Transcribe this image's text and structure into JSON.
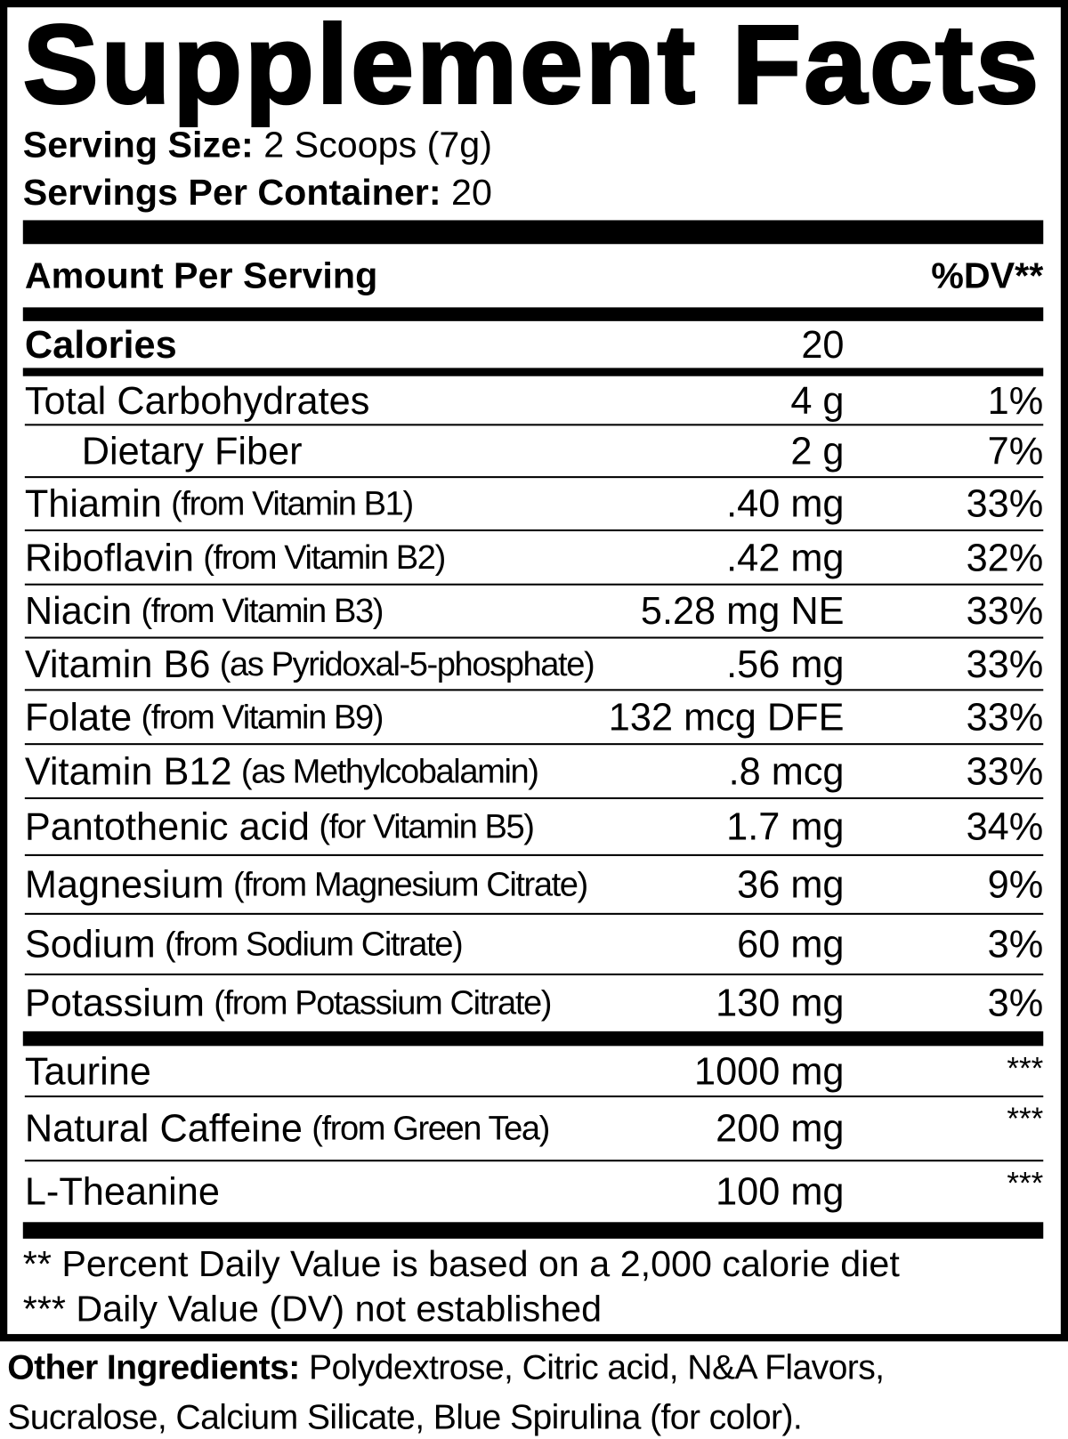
{
  "title": "Supplement Facts",
  "serving_size": {
    "label": "Serving Size:",
    "value": "2 Scoops (7g)"
  },
  "servings_per_container": {
    "label": "Servings Per Container:",
    "value": "20"
  },
  "header": {
    "amount_label": "Amount Per Serving",
    "dv_label": "%DV**"
  },
  "calories": {
    "label": "Calories",
    "value": "20"
  },
  "nutrients": [
    {
      "name": "Total Carbohydrates",
      "note": "",
      "amount": "4 g",
      "dv": "1%"
    },
    {
      "name": "Dietary Fiber",
      "note": "",
      "amount": "2 g",
      "dv": "7%",
      "indent": true
    },
    {
      "name": "Thiamin",
      "note": "(from Vitamin B1)",
      "amount": ".40 mg",
      "dv": "33%"
    },
    {
      "name": "Riboflavin",
      "note": "(from Vitamin B2)",
      "amount": ".42 mg",
      "dv": "32%"
    },
    {
      "name": "Niacin",
      "note": "(from Vitamin B3)",
      "amount": "5.28 mg NE",
      "dv": "33%"
    },
    {
      "name": "Vitamin B6",
      "note": "(as Pyridoxal-5-phosphate)",
      "amount": ".56 mg",
      "dv": "33%"
    },
    {
      "name": "Folate",
      "note": "(from Vitamin B9)",
      "amount": "132 mcg DFE",
      "dv": "33%"
    },
    {
      "name": "Vitamin B12",
      "note": "(as Methylcobalamin)",
      "amount": ".8 mcg",
      "dv": "33%"
    },
    {
      "name": "Pantothenic acid",
      "note": "(for Vitamin B5)",
      "amount": "1.7 mg",
      "dv": "34%"
    },
    {
      "name": "Magnesium",
      "note": "(from Magnesium Citrate)",
      "amount": "36 mg",
      "dv": "9%"
    },
    {
      "name": "Sodium",
      "note": "(from Sodium Citrate)",
      "amount": "60 mg",
      "dv": "3%"
    },
    {
      "name": "Potassium",
      "note": "(from Potassium Citrate)",
      "amount": "130 mg",
      "dv": "3%"
    }
  ],
  "other_actives": [
    {
      "name": "Taurine",
      "note": "",
      "amount": "1000 mg",
      "dv": "***"
    },
    {
      "name": "Natural Caffeine",
      "note": "(from Green Tea)",
      "amount": "200 mg",
      "dv": "***"
    },
    {
      "name": "L-Theanine",
      "note": "",
      "amount": "100 mg",
      "dv": "***"
    }
  ],
  "footnotes": [
    "** Percent Daily Value is based on a 2,000 calorie diet",
    "*** Daily Value (DV) not established"
  ],
  "other_ingredients": {
    "label": "Other Ingredients:",
    "line1": "Polydextrose, Citric acid, N&A Flavors,",
    "line2": "Sucralose, Calcium Silicate, Blue Spirulina (for color)."
  }
}
